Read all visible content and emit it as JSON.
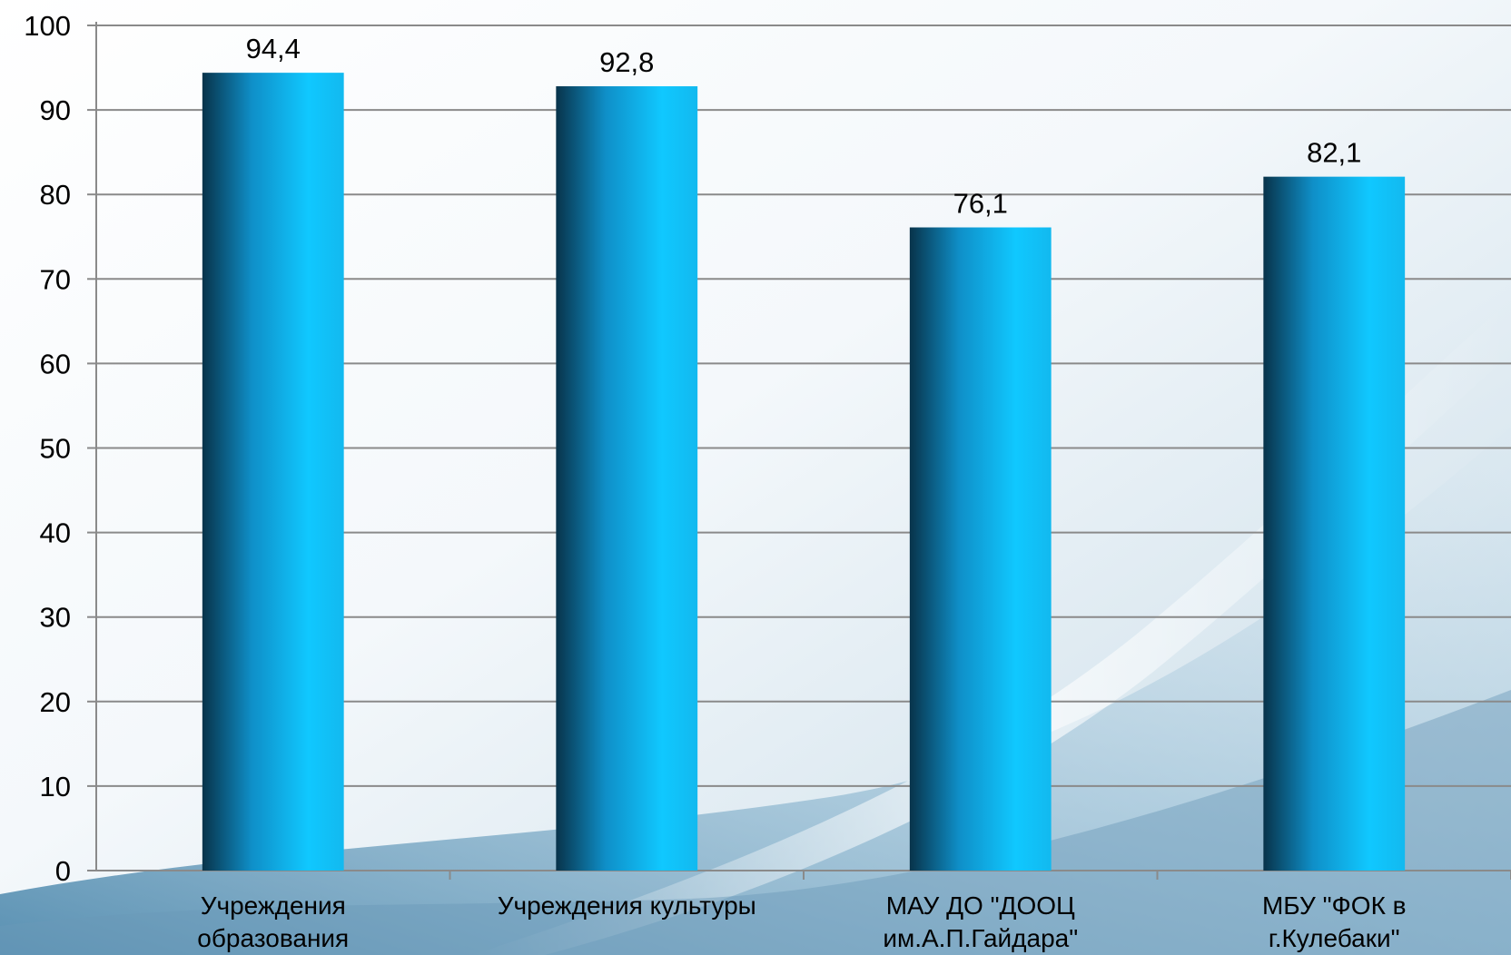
{
  "chart_data": {
    "type": "bar",
    "title": "",
    "xlabel": "",
    "ylabel": "",
    "categories": [
      [
        "Учреждения",
        "образования"
      ],
      [
        "Учреждения культуры"
      ],
      [
        "МАУ ДО \"ДООЦ",
        "им.А.П.Гайдара\""
      ],
      [
        "МБУ \"ФОК в",
        "г.Кулебаки\""
      ]
    ],
    "values": [
      94.4,
      92.8,
      76.1,
      82.1
    ],
    "value_labels": [
      "94,4",
      "92,8",
      "76,1",
      "82,1"
    ],
    "ylim": [
      0,
      100
    ],
    "yticks": [
      0,
      10,
      20,
      30,
      40,
      50,
      60,
      70,
      80,
      90,
      100
    ],
    "ytick_labels": [
      "0",
      "10",
      "20",
      "30",
      "40",
      "50",
      "60",
      "70",
      "80",
      "90",
      "100"
    ],
    "grid": true,
    "legend": "none"
  },
  "colors": {
    "bar_dark": "#08334a",
    "bar_mid": "#0f8fc8",
    "bar_light": "#10c8ff",
    "grid": "#8a8a8a",
    "background_light": "#f2f7fb",
    "background_blue": "#9ec3d8"
  }
}
